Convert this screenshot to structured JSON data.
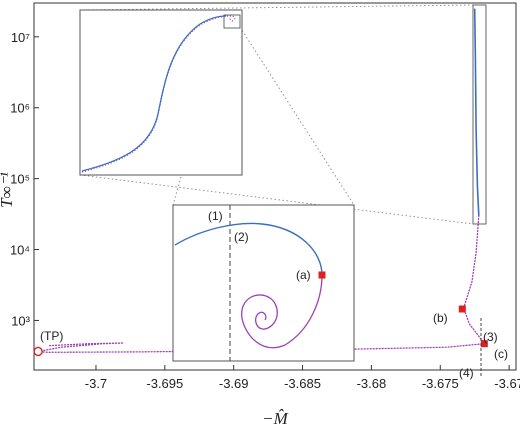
{
  "chart_data": {
    "type": "line",
    "xlabel": "−M̂",
    "ylabel": "T̂∞⁻¹",
    "x_scale": "linear",
    "y_scale": "log",
    "xlim": [
      -3.7045,
      -3.6695
    ],
    "ylim": [
      200,
      30000000
    ],
    "x_ticks": [
      -3.7,
      -3.695,
      -3.69,
      -3.685,
      -3.68,
      -3.675,
      -3.67
    ],
    "x_tick_labels": [
      "-3.7",
      "-3.695",
      "-3.69",
      "-3.685",
      "-3.68",
      "-3.675",
      "-3.67"
    ],
    "y_ticks": [
      1000,
      10000,
      100000,
      1000000,
      10000000
    ],
    "y_tick_labels": [
      "10³",
      "10⁴",
      "10⁵",
      "10⁶",
      "10⁷"
    ],
    "grid": false,
    "colors": {
      "stable": "#3a6fc0",
      "unstable": "#a040b8",
      "marker": "#dd2020",
      "frame": "#555555"
    },
    "series": [
      {
        "style": "solid",
        "color_key": "stable",
        "points": [
          [
            -3.6725,
            25000000
          ],
          [
            -3.67245,
            5000000
          ],
          [
            -3.6724,
            500000
          ],
          [
            -3.6723,
            80000
          ],
          [
            -3.6722,
            30000
          ]
        ]
      },
      {
        "style": "dotted",
        "color_key": "unstable",
        "points": [
          [
            -3.6722,
            30000
          ],
          [
            -3.6724,
            9000
          ],
          [
            -3.6727,
            3500
          ],
          [
            -3.6733,
            1500
          ],
          [
            -3.6729,
            900
          ],
          [
            -3.6722,
            600
          ],
          [
            -3.6718,
            470
          ],
          [
            -3.6745,
            420
          ],
          [
            -3.685,
            380
          ],
          [
            -3.697,
            360
          ],
          [
            -3.7035,
            355
          ],
          [
            -3.7042,
            365
          ],
          [
            -3.7025,
            420
          ],
          [
            -3.6995,
            470
          ],
          [
            -3.698,
            480
          ],
          [
            -3.7005,
            470
          ],
          [
            -3.7035,
            440
          ]
        ]
      }
    ],
    "markers": [
      {
        "label": "(TP)",
        "x": -3.7042,
        "y": 365,
        "shape": "open-circle"
      },
      {
        "label": "(b)",
        "x": -3.6734,
        "y": 1450,
        "shape": "square"
      },
      {
        "label": "(c)",
        "x": -3.6718,
        "y": 470,
        "shape": "square"
      }
    ],
    "annotations": [
      {
        "label": "(3)",
        "x": -3.6717,
        "y": 800
      },
      {
        "label": "(4)",
        "x": -3.6717,
        "y": 300
      }
    ],
    "insets": [
      {
        "name": "upper-zoom",
        "annotations": []
      },
      {
        "name": "lower-zoom",
        "annotations": [
          {
            "label": "(1)"
          },
          {
            "label": "(2)"
          },
          {
            "label": "(a)"
          }
        ]
      }
    ]
  }
}
